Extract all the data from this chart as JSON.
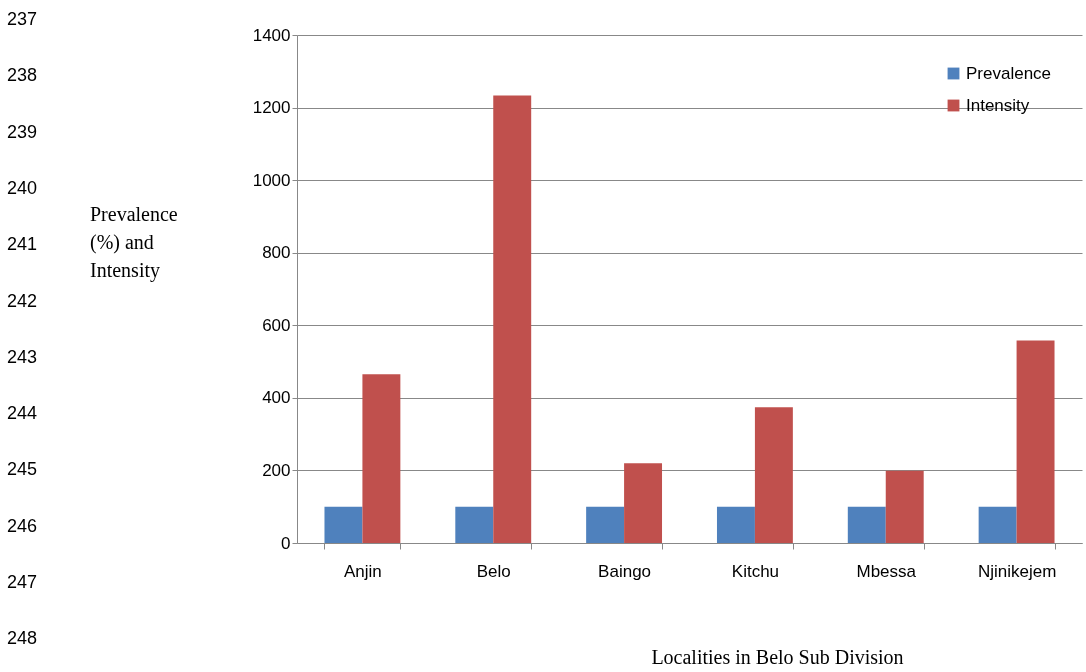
{
  "chart_data": {
    "type": "bar",
    "categories": [
      "Anjin",
      "Belo",
      "Baingo",
      "Kitchu",
      "Mbessa",
      "Njinikejem"
    ],
    "series": [
      {
        "name": "Prevalence",
        "color": "#4f81bd",
        "values": [
          100,
          100,
          100,
          100,
          100,
          100
        ]
      },
      {
        "name": "Intensity",
        "color": "#c0504d",
        "values": [
          465,
          1233,
          220,
          374,
          199,
          558
        ]
      }
    ],
    "xlabel": "Localities in Belo Sub Division",
    "ylabel": "Prevalence (%) and Intensity",
    "ylim": [
      0,
      1400
    ],
    "yticks": [
      0,
      200,
      400,
      600,
      800,
      1000,
      1200,
      1400
    ],
    "grid": "y",
    "legend": "top right",
    "annotations": [
      "237",
      "238",
      "239",
      "240",
      "241",
      "242",
      "243",
      "244",
      "245",
      "246",
      "247",
      "248"
    ]
  }
}
